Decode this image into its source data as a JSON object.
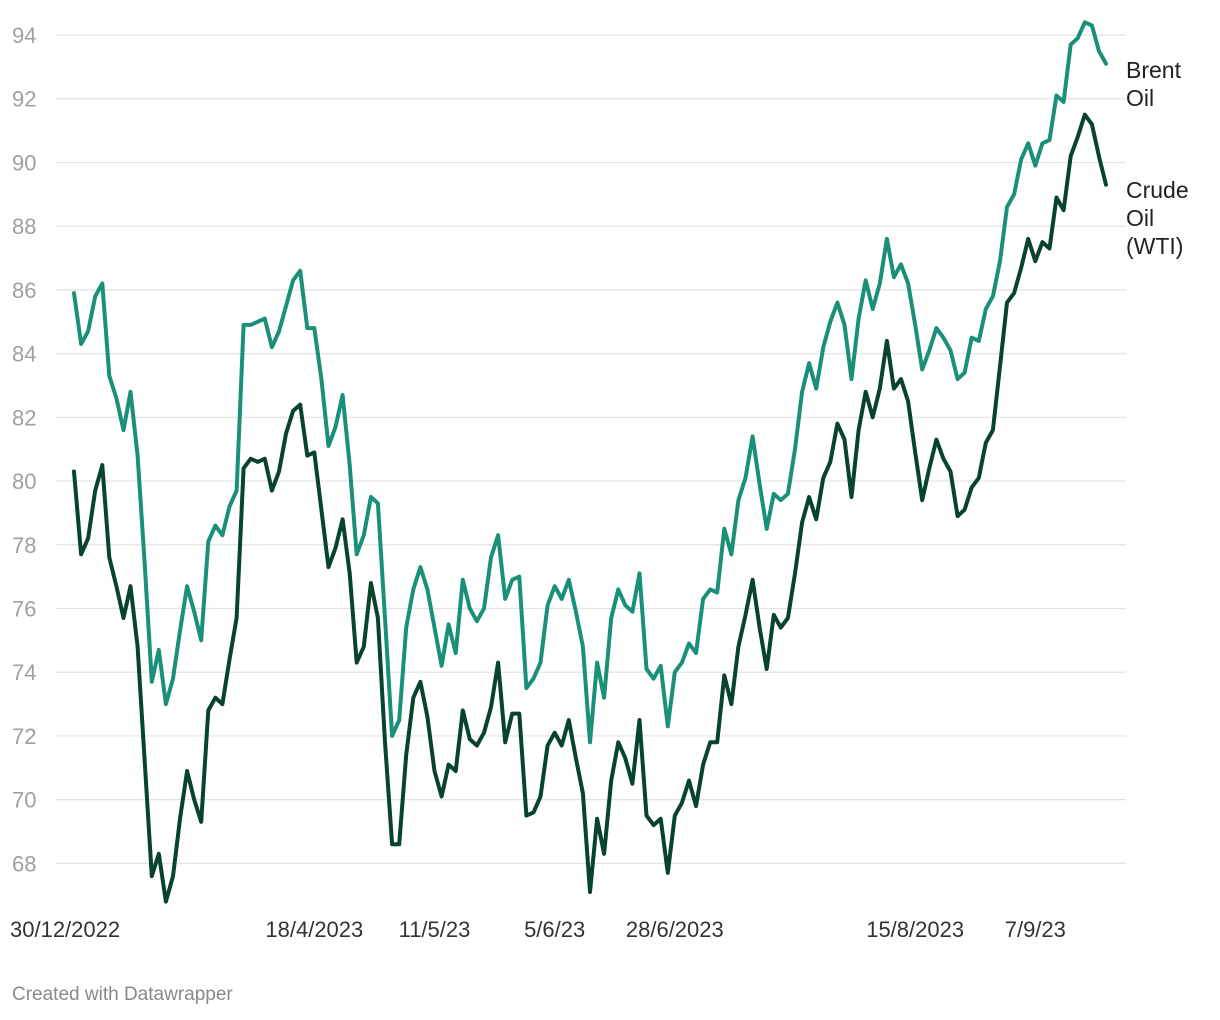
{
  "chart_data": {
    "type": "line",
    "title": "",
    "xlabel": "",
    "ylabel": "",
    "ylim": [
      67,
      94.5
    ],
    "y_ticks": [
      68,
      70,
      72,
      74,
      76,
      78,
      80,
      82,
      84,
      86,
      88,
      90,
      92,
      94
    ],
    "x_ticks": [
      {
        "label": "30/12/2022",
        "index": 0
      },
      {
        "label": "18/4/2023",
        "index": 34
      },
      {
        "label": "11/5/23",
        "index": 51
      },
      {
        "label": "5/6/23",
        "index": 68
      },
      {
        "label": "28/6/2023",
        "index": 85
      },
      {
        "label": "15/8/2023",
        "index": 119
      },
      {
        "label": "7/9/23",
        "index": 136
      }
    ],
    "grid": true,
    "legend": "direct labels at right end",
    "series": [
      {
        "name": "Brent Oil",
        "label_lines": [
          "Brent",
          "Oil"
        ],
        "color": "#1b9079",
        "values": [
          85.9,
          84.3,
          84.7,
          85.8,
          86.2,
          83.3,
          82.6,
          81.6,
          82.8,
          80.8,
          77.4,
          73.7,
          74.7,
          73.0,
          73.8,
          75.3,
          76.7,
          75.9,
          75.0,
          78.1,
          78.6,
          78.3,
          79.2,
          79.7,
          84.9,
          84.9,
          85.0,
          85.1,
          84.2,
          84.7,
          85.5,
          86.3,
          86.6,
          84.8,
          84.8,
          83.2,
          81.1,
          81.7,
          82.7,
          80.5,
          77.7,
          78.3,
          79.5,
          79.3,
          75.7,
          72.0,
          72.5,
          75.4,
          76.6,
          77.3,
          76.6,
          75.4,
          74.2,
          75.5,
          74.6,
          76.9,
          76.0,
          75.6,
          76.0,
          77.6,
          78.3,
          76.3,
          76.9,
          77.0,
          73.5,
          73.8,
          74.3,
          76.1,
          76.7,
          76.3,
          76.9,
          75.9,
          74.8,
          71.8,
          74.3,
          73.2,
          75.7,
          76.6,
          76.1,
          75.9,
          77.1,
          74.1,
          73.8,
          74.2,
          72.3,
          74.0,
          74.3,
          74.9,
          74.6,
          76.3,
          76.6,
          76.5,
          78.5,
          77.7,
          79.4,
          80.1,
          81.4,
          79.9,
          78.5,
          79.6,
          79.4,
          79.6,
          81.0,
          82.8,
          83.7,
          82.9,
          84.2,
          85.0,
          85.6,
          84.9,
          83.2,
          85.1,
          86.3,
          85.4,
          86.2,
          87.6,
          86.4,
          86.8,
          86.2,
          84.9,
          83.5,
          84.1,
          84.8,
          84.5,
          84.1,
          83.2,
          83.4,
          84.5,
          84.4,
          85.4,
          85.8,
          86.9,
          88.6,
          89.0,
          90.1,
          90.6,
          89.9,
          90.6,
          90.7,
          92.1,
          91.9,
          93.7,
          93.9,
          94.4,
          94.3,
          93.5,
          93.1
        ]
      },
      {
        "name": "Crude Oil (WTI)",
        "label_lines": [
          "Crude",
          "Oil",
          "(WTI)"
        ],
        "color": "#08432e",
        "values": [
          80.3,
          77.7,
          78.2,
          79.7,
          80.5,
          77.6,
          76.7,
          75.7,
          76.7,
          74.8,
          71.2,
          67.6,
          68.3,
          66.8,
          67.6,
          69.4,
          70.9,
          70.0,
          69.3,
          72.8,
          73.2,
          73.0,
          74.4,
          75.7,
          80.4,
          80.7,
          80.6,
          80.7,
          79.7,
          80.3,
          81.5,
          82.2,
          82.4,
          80.8,
          80.9,
          79.1,
          77.3,
          77.9,
          78.8,
          77.1,
          74.3,
          74.8,
          76.8,
          75.7,
          71.8,
          68.6,
          68.6,
          71.4,
          73.2,
          73.7,
          72.6,
          70.9,
          70.1,
          71.1,
          70.9,
          72.8,
          71.9,
          71.7,
          72.1,
          72.9,
          74.3,
          71.8,
          72.7,
          72.7,
          69.5,
          69.6,
          70.1,
          71.7,
          72.1,
          71.7,
          72.5,
          71.3,
          70.2,
          67.1,
          69.4,
          68.3,
          70.6,
          71.8,
          71.3,
          70.5,
          72.5,
          69.5,
          69.2,
          69.4,
          67.7,
          69.5,
          69.9,
          70.6,
          69.8,
          71.1,
          71.8,
          71.8,
          73.9,
          73.0,
          74.8,
          75.8,
          76.9,
          75.4,
          74.1,
          75.8,
          75.4,
          75.7,
          77.1,
          78.7,
          79.5,
          78.8,
          80.1,
          80.6,
          81.8,
          81.3,
          79.5,
          81.6,
          82.8,
          82.0,
          82.9,
          84.4,
          82.9,
          83.2,
          82.5,
          80.9,
          79.4,
          80.4,
          81.3,
          80.7,
          80.3,
          78.9,
          79.1,
          79.8,
          80.1,
          81.2,
          81.6,
          83.6,
          85.6,
          85.9,
          86.7,
          87.6,
          86.9,
          87.5,
          87.3,
          88.9,
          88.5,
          90.2,
          90.8,
          91.5,
          91.2,
          90.2,
          89.3
        ]
      }
    ]
  },
  "footer": {
    "credit": "Created with Datawrapper"
  }
}
